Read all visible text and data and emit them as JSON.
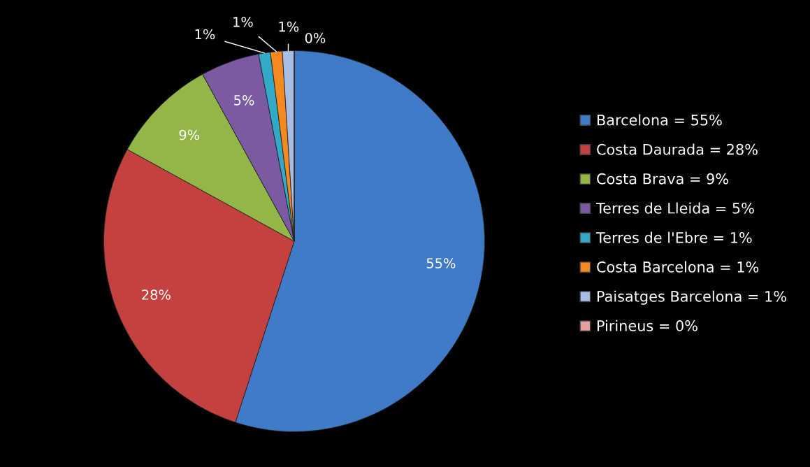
{
  "chart_data": {
    "type": "pie",
    "categories": [
      "Barcelona = 55%",
      "Costa Daurada = 28%",
      "Costa Brava = 9%",
      "Terres de Lleida = 5%",
      "Terres de l'Ebre = 1%",
      "Costa Barcelona = 1%",
      "Paisatges Barcelona = 1%",
      "Pirineus = 0%"
    ],
    "values": [
      55,
      28,
      9,
      5,
      1,
      1,
      1,
      0
    ],
    "value_labels": [
      "55%",
      "28%",
      "9%",
      "5%",
      "1%",
      "1%",
      "1%",
      "0%"
    ],
    "colors": [
      "#3f7bc6",
      "#c3423f",
      "#93b648",
      "#7a5aa0",
      "#33a9c8",
      "#f28a21",
      "#a7bde3",
      "#e4a09e"
    ],
    "legend": "right"
  }
}
